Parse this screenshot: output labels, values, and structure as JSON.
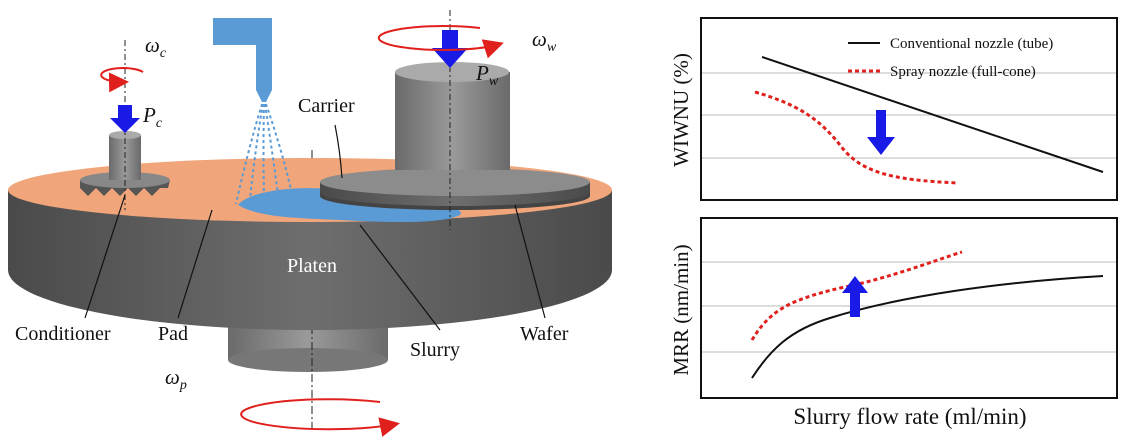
{
  "diagram": {
    "symbols": {
      "conditioner_speed": {
        "symbol": "ω",
        "subscript": "c"
      },
      "conditioner_pressure": {
        "symbol": "P",
        "subscript": "c"
      },
      "wafer_speed": {
        "symbol": "ω",
        "subscript": "w"
      },
      "wafer_pressure": {
        "symbol": "P",
        "subscript": "w"
      },
      "platen_speed": {
        "symbol": "ω",
        "subscript": "p"
      }
    },
    "labels": {
      "carrier": "Carrier",
      "platen": "Platen",
      "conditioner": "Conditioner",
      "pad": "Pad",
      "slurry": "Slurry",
      "wafer": "Wafer"
    }
  },
  "plots": {
    "legend": [
      "Conventional nozzle (tube)",
      "Spray nozzle (full-cone)"
    ],
    "top_ylabel": "WIWNU (%)",
    "bottom_ylabel": "MRR (nm/min)",
    "xlabel": "Slurry flow rate (ml/min)"
  }
}
